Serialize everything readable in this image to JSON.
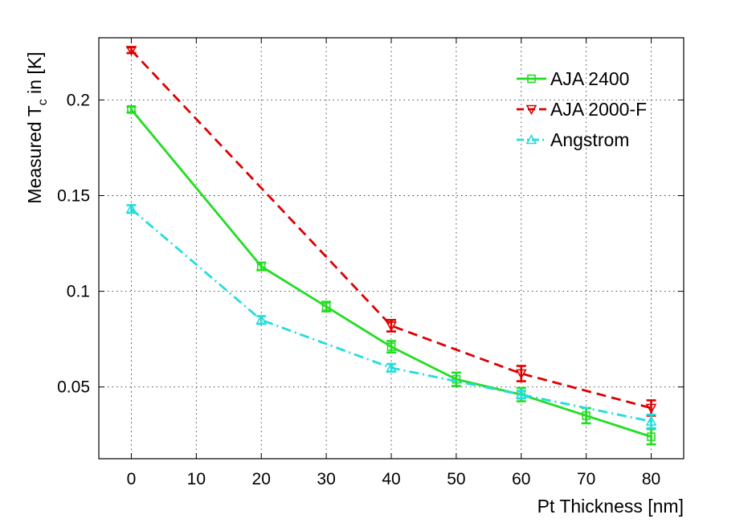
{
  "chart_data": {
    "type": "line",
    "title": "",
    "xlabel": "Pt Thickness [nm]",
    "ylabel_main": "Measured T",
    "ylabel_sub": "c",
    "ylabel_tail": " in [K]",
    "xlim": [
      -5,
      85
    ],
    "ylim": [
      0.0125,
      0.2325
    ],
    "grid": true,
    "legend_position": "top-right",
    "x_ticks": [
      0,
      10,
      20,
      30,
      40,
      50,
      60,
      70,
      80
    ],
    "x_tick_labels": [
      "0",
      "10",
      "20",
      "30",
      "40",
      "50",
      "60",
      "70",
      "80"
    ],
    "y_ticks": [
      0.05,
      0.1,
      0.15,
      0.2
    ],
    "y_tick_labels": [
      "0.05",
      "0.1",
      "0.15",
      "0.2"
    ],
    "series": [
      {
        "name": "AJA 2400",
        "color": "#22dd22",
        "dash": "solid",
        "marker": "square",
        "x": [
          0,
          20,
          30,
          40,
          50,
          60,
          70,
          80
        ],
        "y": [
          0.195,
          0.113,
          0.092,
          0.071,
          0.054,
          0.046,
          0.035,
          0.024
        ],
        "err": [
          0.0015,
          0.002,
          0.0025,
          0.003,
          0.0035,
          0.0035,
          0.004,
          0.004
        ]
      },
      {
        "name": "AJA 2000-F",
        "color": "#dd0000",
        "dash": "dashed",
        "marker": "triangle-down",
        "x": [
          0,
          40,
          60,
          80
        ],
        "y": [
          0.226,
          0.082,
          0.057,
          0.039
        ],
        "err": [
          0.0015,
          0.003,
          0.004,
          0.004
        ]
      },
      {
        "name": "Angstrom",
        "color": "#22dddd",
        "dash": "dashdot",
        "marker": "triangle-up",
        "x": [
          0,
          20,
          40,
          60,
          80
        ],
        "y": [
          0.143,
          0.085,
          0.06,
          0.046,
          0.032
        ],
        "err": [
          0.002,
          0.002,
          0.002,
          0.002,
          0.0035
        ]
      }
    ]
  }
}
